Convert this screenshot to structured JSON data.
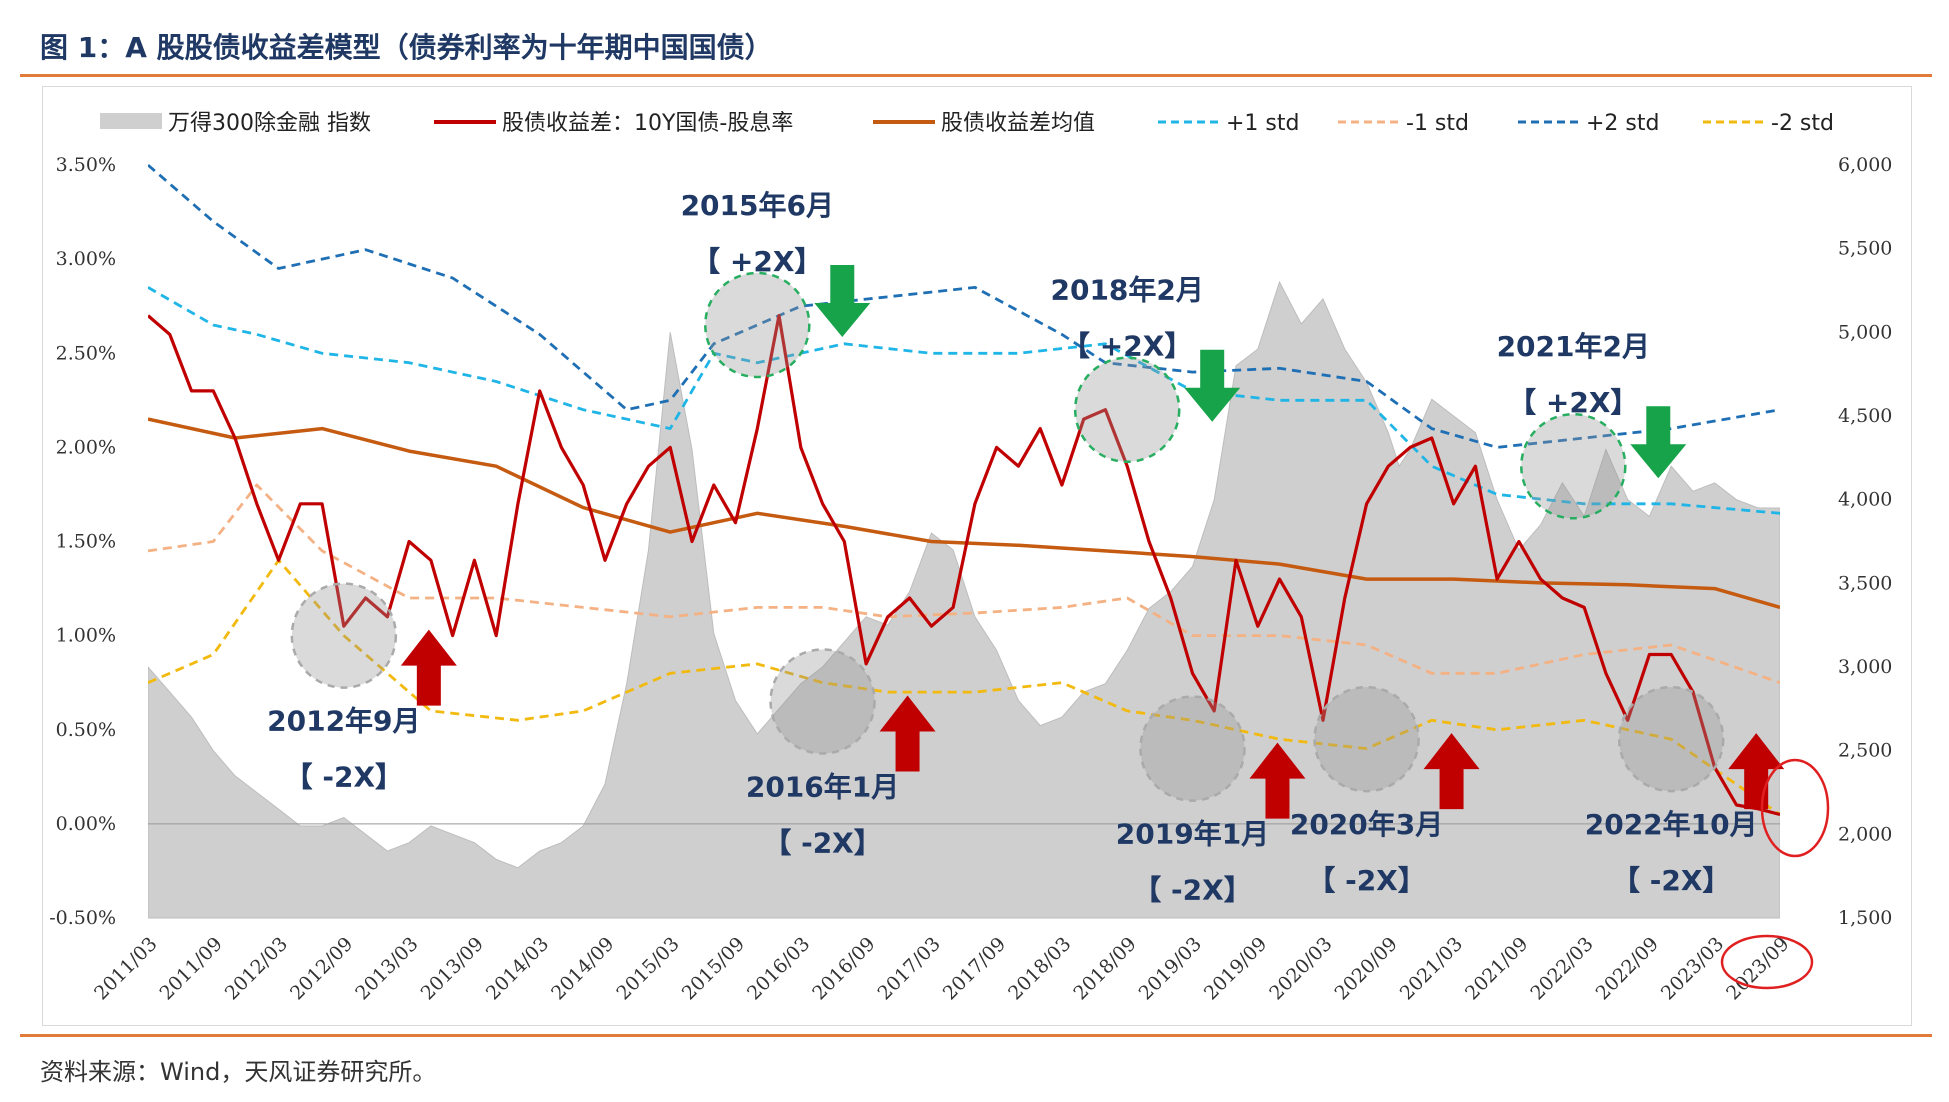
{
  "title": "图 1：A 股股债收益差模型（债券利率为十年期中国国债）",
  "source": "资料来源：Wind，天风证券研究所。",
  "chart_data": {
    "type": "line",
    "left_axis": {
      "ticks": [
        "3.50%",
        "3.00%",
        "2.50%",
        "2.00%",
        "1.50%",
        "1.00%",
        "0.50%",
        "0.00%",
        "-0.50%"
      ],
      "ylim": [
        -0.5,
        3.5
      ]
    },
    "right_axis": {
      "ticks": [
        "6,000",
        "5,500",
        "5,000",
        "4,500",
        "4,000",
        "3,500",
        "3,000",
        "2,500",
        "2,000",
        "1,500"
      ],
      "ylim": [
        1500,
        6000
      ]
    },
    "x_ticks": [
      "2011/03",
      "2011/09",
      "2012/03",
      "2012/09",
      "2013/03",
      "2013/09",
      "2014/03",
      "2014/09",
      "2015/03",
      "2015/09",
      "2016/03",
      "2016/09",
      "2017/03",
      "2017/09",
      "2018/03",
      "2018/09",
      "2019/03",
      "2019/09",
      "2020/03",
      "2020/09",
      "2021/03",
      "2021/09",
      "2022/03",
      "2022/09",
      "2023/03",
      "2023/09"
    ],
    "colors": {
      "index_area": "#d0d0d0",
      "spread": "#c00000",
      "mean": "#c55a11",
      "plus1": "#1fb5e6",
      "minus1": "#f4b183",
      "plus2": "#1f6fb5",
      "minus2": "#f2b90f",
      "up_arrow": "#c00000",
      "down_arrow": "#17a34a"
    },
    "legend": [
      {
        "label": "万得300除金融 指数",
        "kind": "area",
        "color": "#cfcfcf"
      },
      {
        "label": "股债收益差：10Y国债-股息率",
        "kind": "solid",
        "color": "#c00000"
      },
      {
        "label": "股债收益差均值",
        "kind": "solid",
        "color": "#c55a11"
      },
      {
        "label": "+1 std",
        "kind": "dash",
        "color": "#1fb5e6"
      },
      {
        "label": "-1 std",
        "kind": "dash",
        "color": "#f4b183"
      },
      {
        "label": "+2 std",
        "kind": "dash",
        "color": "#1f6fb5"
      },
      {
        "label": "-2 std",
        "kind": "dash",
        "color": "#f2b90f"
      }
    ],
    "series": [
      {
        "name": "万得300除金融 指数",
        "axis": "right",
        "x": [
          0,
          2,
          4,
          6,
          8,
          10,
          12,
          14,
          16,
          18,
          20,
          22,
          24,
          26,
          28,
          30,
          32,
          34,
          36,
          38,
          40,
          42,
          44,
          46,
          48,
          50,
          52,
          54,
          56,
          58,
          60,
          62,
          64,
          66,
          68,
          70,
          72,
          74,
          76,
          78,
          80,
          82,
          84,
          86,
          88,
          90,
          92,
          94,
          96,
          98,
          100,
          102,
          104,
          106,
          108,
          110,
          112,
          114,
          115,
          116,
          118,
          120,
          122,
          124,
          126,
          128,
          130,
          132,
          134,
          136,
          138,
          140,
          142,
          144,
          146,
          148,
          150
        ],
        "y": [
          3000,
          2850,
          2700,
          2500,
          2350,
          2250,
          2150,
          2050,
          2050,
          2100,
          2000,
          1900,
          1950,
          2050,
          2000,
          1950,
          1850,
          1800,
          1900,
          1950,
          2050,
          2300,
          2900,
          3700,
          5000,
          4300,
          3200,
          2800,
          2600,
          2750,
          2900,
          3000,
          3150,
          3300,
          3250,
          3450,
          3800,
          3700,
          3300,
          3100,
          2800,
          2650,
          2700,
          2850,
          2900,
          3100,
          3350,
          3450,
          3600,
          4000,
          4800,
          4900,
          5300,
          5050,
          5200,
          4900,
          4700,
          4400,
          4200,
          4300,
          4600,
          4500,
          4400,
          4000,
          3700,
          3850,
          4100,
          3900,
          4300,
          4000,
          3900,
          4200,
          4050,
          4100,
          4000,
          3950,
          3950
        ]
      },
      {
        "name": "股债收益差：10Y国债-股息率",
        "axis": "left",
        "x": [
          0,
          2,
          4,
          6,
          8,
          10,
          12,
          14,
          16,
          18,
          20,
          22,
          24,
          26,
          28,
          30,
          32,
          34,
          36,
          38,
          40,
          42,
          44,
          46,
          48,
          50,
          52,
          54,
          56,
          58,
          60,
          62,
          64,
          66,
          68,
          70,
          72,
          74,
          76,
          78,
          80,
          82,
          84,
          86,
          88,
          90,
          92,
          94,
          96,
          98,
          100,
          102,
          104,
          106,
          108,
          110,
          112,
          114,
          116,
          118,
          120,
          122,
          124,
          126,
          128,
          130,
          132,
          134,
          136,
          138,
          140,
          142,
          144,
          146,
          148,
          150
        ],
        "y": [
          2.7,
          2.6,
          2.3,
          2.3,
          2.05,
          1.7,
          1.4,
          1.7,
          1.7,
          1.05,
          1.2,
          1.1,
          1.5,
          1.4,
          1.0,
          1.4,
          1.0,
          1.7,
          2.3,
          2.0,
          1.8,
          1.4,
          1.7,
          1.9,
          2.0,
          1.5,
          1.8,
          1.6,
          2.1,
          2.7,
          2.0,
          1.7,
          1.5,
          0.85,
          1.1,
          1.2,
          1.05,
          1.15,
          1.7,
          2.0,
          1.9,
          2.1,
          1.8,
          2.15,
          2.2,
          1.9,
          1.5,
          1.2,
          0.8,
          0.6,
          1.4,
          1.05,
          1.3,
          1.1,
          0.55,
          1.2,
          1.7,
          1.9,
          2.0,
          2.05,
          1.7,
          1.9,
          1.3,
          1.5,
          1.3,
          1.2,
          1.15,
          0.8,
          0.55,
          0.9,
          0.9,
          0.7,
          0.3,
          0.1,
          0.08,
          0.05
        ]
      },
      {
        "name": "股债收益差均值",
        "axis": "left",
        "x": [
          0,
          8,
          16,
          24,
          32,
          40,
          48,
          56,
          64,
          72,
          80,
          88,
          96,
          104,
          112,
          120,
          128,
          136,
          144,
          150
        ],
        "y": [
          2.15,
          2.05,
          2.1,
          1.98,
          1.9,
          1.68,
          1.55,
          1.65,
          1.58,
          1.5,
          1.48,
          1.45,
          1.42,
          1.38,
          1.3,
          1.3,
          1.28,
          1.27,
          1.25,
          1.15
        ]
      },
      {
        "name": "+1 std",
        "axis": "left",
        "x": [
          0,
          6,
          10,
          16,
          24,
          32,
          40,
          48,
          52,
          56,
          64,
          72,
          80,
          88,
          96,
          104,
          112,
          118,
          124,
          132,
          140,
          150
        ],
        "y": [
          2.85,
          2.65,
          2.6,
          2.5,
          2.45,
          2.35,
          2.2,
          2.1,
          2.5,
          2.45,
          2.55,
          2.5,
          2.5,
          2.55,
          2.3,
          2.25,
          2.25,
          1.9,
          1.75,
          1.7,
          1.7,
          1.65
        ]
      },
      {
        "name": "-1 std",
        "axis": "left",
        "x": [
          0,
          6,
          10,
          16,
          24,
          32,
          40,
          48,
          56,
          62,
          68,
          76,
          84,
          90,
          96,
          104,
          112,
          118,
          124,
          132,
          140,
          150
        ],
        "y": [
          1.45,
          1.5,
          1.8,
          1.45,
          1.2,
          1.2,
          1.15,
          1.1,
          1.15,
          1.15,
          1.1,
          1.12,
          1.15,
          1.2,
          1.0,
          1.0,
          0.95,
          0.8,
          0.8,
          0.9,
          0.95,
          0.75
        ]
      },
      {
        "name": "+2 std",
        "axis": "left",
        "x": [
          0,
          6,
          12,
          20,
          28,
          36,
          44,
          48,
          52,
          60,
          68,
          76,
          84,
          88,
          96,
          104,
          112,
          118,
          124,
          132,
          140,
          150
        ],
        "y": [
          3.5,
          3.2,
          2.95,
          3.05,
          2.9,
          2.6,
          2.2,
          2.25,
          2.55,
          2.75,
          2.8,
          2.85,
          2.6,
          2.45,
          2.4,
          2.42,
          2.35,
          2.1,
          2.0,
          2.05,
          2.1,
          2.2
        ]
      },
      {
        "name": "-2 std",
        "axis": "left",
        "x": [
          0,
          6,
          12,
          18,
          26,
          34,
          40,
          48,
          56,
          62,
          68,
          76,
          84,
          90,
          96,
          104,
          112,
          118,
          124,
          132,
          140,
          150
        ],
        "y": [
          0.75,
          0.9,
          1.4,
          1.0,
          0.6,
          0.55,
          0.6,
          0.8,
          0.85,
          0.75,
          0.7,
          0.7,
          0.75,
          0.6,
          0.55,
          0.45,
          0.4,
          0.55,
          0.5,
          0.55,
          0.45,
          0.05
        ]
      }
    ],
    "annotations": [
      {
        "label": "2015年6月",
        "sub": "【 +2X】",
        "x": 56,
        "y": 2.65,
        "kind": "top",
        "arrow": "down"
      },
      {
        "label": "2018年2月",
        "sub": "【 +2X】",
        "x": 90,
        "y": 2.2,
        "kind": "top",
        "arrow": "down"
      },
      {
        "label": "2021年2月",
        "sub": "【 +2X】",
        "x": 131,
        "y": 1.9,
        "kind": "top",
        "arrow": "down"
      },
      {
        "label": "2012年9月",
        "sub": "【 -2X】",
        "x": 18,
        "y": 1.0,
        "kind": "bottom",
        "arrow": "up"
      },
      {
        "label": "2016年1月",
        "sub": "【 -2X】",
        "x": 62,
        "y": 0.65,
        "kind": "bottom",
        "arrow": "up"
      },
      {
        "label": "2019年1月",
        "sub": "【 -2X】",
        "x": 96,
        "y": 0.4,
        "kind": "bottom",
        "arrow": "up"
      },
      {
        "label": "2020年3月",
        "sub": "【 -2X】",
        "x": 112,
        "y": 0.45,
        "kind": "bottom",
        "arrow": "up"
      },
      {
        "label": "2022年10月",
        "sub": "【 -2X】",
        "x": 140,
        "y": 0.45,
        "kind": "bottom",
        "arrow": "up"
      }
    ]
  }
}
